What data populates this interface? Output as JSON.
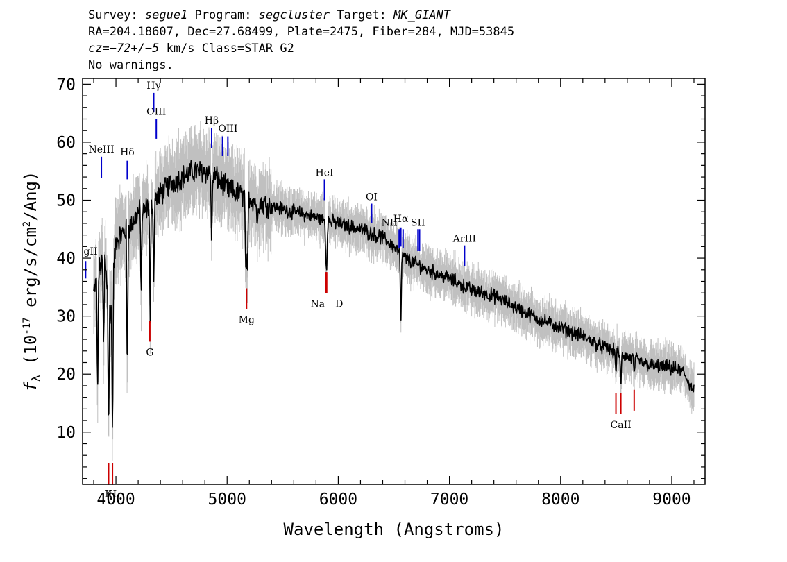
{
  "header": {
    "survey_label": "Survey: ",
    "survey": "segue1",
    "program_label": " Program: ",
    "program": "segcluster",
    "target_label": " Target: ",
    "target": "MK_GIANT",
    "line2": "RA=204.18607, Dec=27.68499, Plate=2475, Fiber=284, MJD=53845",
    "cz": "cz=−72+/−5",
    "cz_rest": " km/s Class=STAR G2",
    "line4": "No warnings."
  },
  "chart_data": {
    "type": "line",
    "xlabel": "Wavelength (Angstroms)",
    "ylabel": "fλ (10⁻¹⁷ erg/s/cm²/Ang)",
    "ylabel_parts": {
      "f": "f",
      "lambda": "λ",
      "exp_a": "-17",
      "mid": " erg/s/cm",
      "exp_b": "2",
      "end": "/Ang)",
      "pre": " (10"
    },
    "xlim": [
      3700,
      9300
    ],
    "ylim": [
      1,
      71
    ],
    "xticks": [
      4000,
      5000,
      6000,
      7000,
      8000,
      9000
    ],
    "xtick_labels": [
      "4000",
      "5000",
      "6000",
      "7000",
      "8000",
      "9000"
    ],
    "yticks": [
      10,
      20,
      30,
      40,
      50,
      60,
      70
    ],
    "ytick_labels": [
      "10",
      "20",
      "30",
      "40",
      "50",
      "60",
      "70"
    ],
    "series_colors": {
      "flux": "#000000",
      "error_band": "#c0c0c0",
      "emission": "#0000cc",
      "absorption": "#cc0000"
    },
    "continuum": [
      [
        3800,
        34
      ],
      [
        3850,
        38
      ],
      [
        3900,
        40
      ],
      [
        3950,
        30
      ],
      [
        4000,
        43
      ],
      [
        4050,
        44
      ],
      [
        4100,
        45
      ],
      [
        4150,
        46
      ],
      [
        4200,
        48
      ],
      [
        4250,
        48
      ],
      [
        4300,
        49
      ],
      [
        4350,
        50
      ],
      [
        4400,
        51
      ],
      [
        4450,
        52
      ],
      [
        4500,
        53
      ],
      [
        4600,
        54
      ],
      [
        4700,
        55
      ],
      [
        4800,
        55
      ],
      [
        4900,
        54
      ],
      [
        5000,
        52
      ],
      [
        5100,
        51
      ],
      [
        5200,
        50.5
      ],
      [
        5300,
        49.5
      ],
      [
        5400,
        49
      ],
      [
        5500,
        48.5
      ],
      [
        5600,
        48
      ],
      [
        5700,
        47.5
      ],
      [
        5800,
        47
      ],
      [
        5900,
        46.5
      ],
      [
        6000,
        46
      ],
      [
        6200,
        45
      ],
      [
        6400,
        43.5
      ],
      [
        6500,
        42
      ],
      [
        6600,
        40
      ],
      [
        6800,
        38
      ],
      [
        7000,
        36.5
      ],
      [
        7200,
        34.5
      ],
      [
        7400,
        33.5
      ],
      [
        7600,
        31.5
      ],
      [
        7800,
        29.5
      ],
      [
        8000,
        28
      ],
      [
        8200,
        26.5
      ],
      [
        8400,
        24.5
      ],
      [
        8600,
        23
      ],
      [
        8800,
        21.5
      ],
      [
        9000,
        21
      ],
      [
        9100,
        20.5
      ],
      [
        9200,
        17
      ]
    ],
    "absorption_features": [
      [
        3835,
        16
      ],
      [
        3889,
        24
      ],
      [
        3934,
        8
      ],
      [
        3969,
        8
      ],
      [
        4102,
        18
      ],
      [
        4227,
        33
      ],
      [
        4308,
        29
      ],
      [
        4340,
        36
      ],
      [
        4861,
        42
      ],
      [
        5167,
        38
      ],
      [
        5175,
        37
      ],
      [
        5184,
        38
      ],
      [
        5270,
        45
      ],
      [
        5890,
        38
      ],
      [
        5896,
        38
      ],
      [
        6563,
        28
      ],
      [
        8498,
        20
      ],
      [
        8542,
        17
      ],
      [
        8662,
        20
      ]
    ],
    "emission_lines": [
      {
        "label": "MgII",
        "x": 3727,
        "y_top": 39.5,
        "y_bottom": 36.5,
        "label_y": 41.2
      },
      {
        "label": "NeIII",
        "x": 3869,
        "y_top": 57.5,
        "y_bottom": 53.8,
        "label_y": 58.8
      },
      {
        "label": "Hδ",
        "x": 4102,
        "y_top": 56.8,
        "y_bottom": 53.6,
        "label_y": 58.3
      },
      {
        "label": "Hγ",
        "x": 4340,
        "y_top": 68.5,
        "y_bottom": 65.2,
        "label_y": 69.8
      },
      {
        "label": "OIII",
        "x": 4363,
        "y_top": 64.0,
        "y_bottom": 60.6,
        "label_y": 65.3
      },
      {
        "label": "Hβ",
        "x": 4861,
        "y_top": 62.5,
        "y_bottom": 59.0,
        "label_y": 63.8
      },
      {
        "label": "OIII",
        "x": 4959,
        "y_top": 61.0,
        "y_bottom": 57.6,
        "label_y": 62.4,
        "hide_label": true
      },
      {
        "label": "OIII",
        "x": 5007,
        "y_top": 61.0,
        "y_bottom": 57.6,
        "label_y": 62.4
      },
      {
        "label": "HeI",
        "x": 5876,
        "y_top": 53.6,
        "y_bottom": 50.0,
        "label_y": 54.8
      },
      {
        "label": "OI",
        "x": 6300,
        "y_top": 49.4,
        "y_bottom": 46.0,
        "label_y": 50.6
      },
      {
        "label": "NII",
        "x": 6548,
        "y_top": 45.0,
        "y_bottom": 41.8,
        "label_y": 46.2,
        "label_dx": -14
      },
      {
        "label": "Hα",
        "x": 6563,
        "y_top": 45.3,
        "y_bottom": 42.0,
        "label_y": 46.8
      },
      {
        "label": "NII",
        "x": 6583,
        "y_top": 45.0,
        "y_bottom": 41.8,
        "label_y": 44.8,
        "hide_label": true
      },
      {
        "label": "SII",
        "x": 6717,
        "y_top": 45.0,
        "y_bottom": 41.2,
        "label_y": 46.2
      },
      {
        "label": "NII",
        "x": 6731,
        "y_top": 45.0,
        "y_bottom": 41.2,
        "label_y": 45.4,
        "hide_label": true
      },
      {
        "label": "ArIII",
        "x": 7136,
        "y_top": 42.2,
        "y_bottom": 38.6,
        "label_y": 43.4
      }
    ],
    "absorption_lines": [
      {
        "label": "K",
        "x": 3934,
        "y_top": 4.6,
        "y_bottom": 0.9,
        "label_y": -0.6
      },
      {
        "label": "H",
        "x": 3969,
        "y_top": 4.6,
        "y_bottom": 0.9,
        "label_y": -0.6
      },
      {
        "label": "G",
        "x": 4305,
        "y_top": 29.2,
        "y_bottom": 25.6,
        "label_y": 23.8
      },
      {
        "label": "Mg",
        "x": 5175,
        "y_top": 34.8,
        "y_bottom": 31.2,
        "label_y": 29.4
      },
      {
        "label": "Na",
        "x": 5890,
        "y_top": 37.6,
        "y_bottom": 34.0,
        "label_y": 32.2,
        "label_dx": -12
      },
      {
        "label": "D",
        "x": 5896,
        "y_top": 37.6,
        "y_bottom": 34.0,
        "label_y": 32.2,
        "label_dx": 18
      },
      {
        "label": "CaII",
        "x": 8498,
        "y_top": 16.7,
        "y_bottom": 13.1,
        "label_y": 11.3,
        "hide_label": true
      },
      {
        "label": "CaII",
        "x": 8542,
        "y_top": 16.7,
        "y_bottom": 13.1,
        "label_y": 11.3
      },
      {
        "label": "CaII",
        "x": 8662,
        "y_top": 17.3,
        "y_bottom": 13.7,
        "label_y": 11.9,
        "hide_label": true
      }
    ]
  }
}
